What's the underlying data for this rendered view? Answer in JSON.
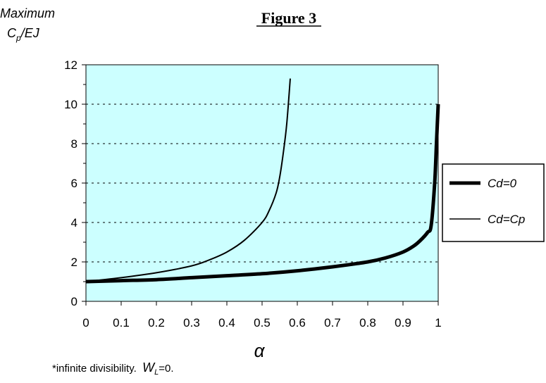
{
  "chart_data": {
    "type": "line",
    "title": "Figure 3",
    "ylabel_line1": "Maximum",
    "ylabel_var": "C",
    "ylabel_sub": "p",
    "ylabel_rest": "/EJ",
    "xlabel": "α",
    "xlim": [
      0,
      1
    ],
    "ylim": [
      0,
      12
    ],
    "xticks": [
      0,
      0.1,
      0.2,
      0.3,
      0.4,
      0.5,
      0.6,
      0.7,
      0.8,
      0.9,
      1
    ],
    "xtick_labels": [
      "0",
      "0.1",
      "0.2",
      "0.3",
      "0.4",
      "0.5",
      "0.6",
      "0.7",
      "0.8",
      "0.9",
      "1"
    ],
    "yticks": [
      0,
      2,
      4,
      6,
      8,
      10,
      12
    ],
    "ytick_labels": [
      "0",
      "2",
      "4",
      "6",
      "8",
      "10",
      "12"
    ],
    "grid": "horizontal dashed",
    "legend_position": "right",
    "plot_background": "#ccffff",
    "series": [
      {
        "name": "Cd=0",
        "color": "#000000",
        "line_weight": "thick",
        "x": [
          0,
          0.1,
          0.2,
          0.3,
          0.4,
          0.5,
          0.6,
          0.7,
          0.8,
          0.85,
          0.9,
          0.93,
          0.95,
          0.97,
          0.98,
          0.99,
          0.995,
          1.0
        ],
        "y": [
          1.0,
          1.05,
          1.1,
          1.2,
          1.3,
          1.4,
          1.55,
          1.75,
          2.0,
          2.2,
          2.5,
          2.8,
          3.1,
          3.5,
          3.85,
          6.0,
          8.0,
          10.0
        ]
      },
      {
        "name": "Cd=Cp",
        "color": "#000000",
        "line_weight": "thin",
        "x": [
          0,
          0.1,
          0.2,
          0.3,
          0.35,
          0.4,
          0.45,
          0.5,
          0.52,
          0.54,
          0.55,
          0.56,
          0.57,
          0.58
        ],
        "y": [
          1.0,
          1.2,
          1.45,
          1.8,
          2.1,
          2.5,
          3.1,
          4.0,
          4.6,
          5.5,
          6.3,
          7.5,
          9.0,
          11.3
        ]
      }
    ]
  },
  "footnote": {
    "text": "*infinite divisibility.  ",
    "var": "W",
    "sub": "L",
    "tail": "=0."
  }
}
